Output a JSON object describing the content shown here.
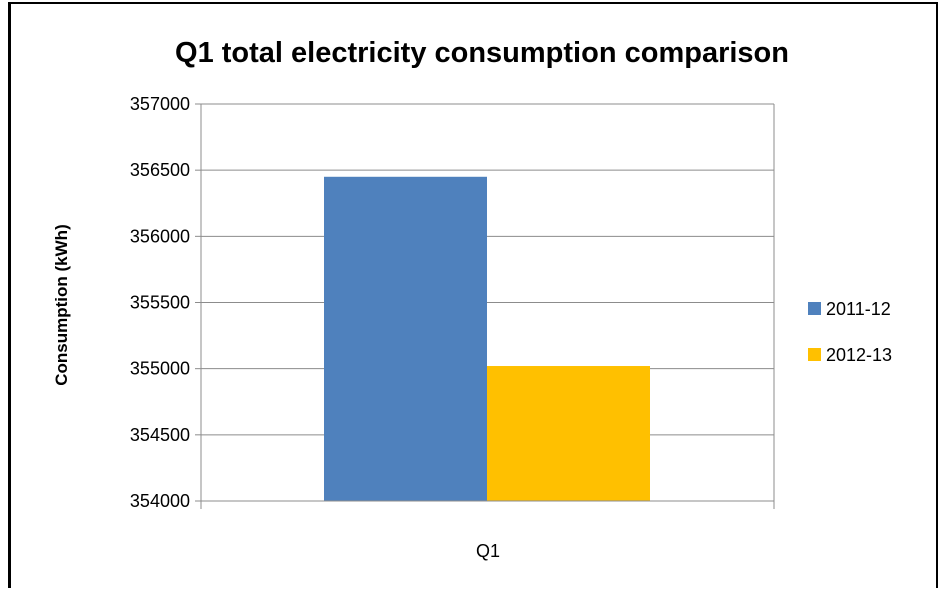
{
  "chart_data": {
    "type": "bar",
    "title": "Q1 total electricity consumption comparison",
    "xlabel": "",
    "ylabel": "Consumption (kWh)",
    "categories": [
      "Q1"
    ],
    "series": [
      {
        "name": "2011-12",
        "values": [
          356450
        ],
        "color": "#4F81BD"
      },
      {
        "name": "2012-13",
        "values": [
          355020
        ],
        "color": "#FFC000"
      }
    ],
    "ylim": [
      354000,
      357000
    ],
    "yticks": [
      "354000",
      "354500",
      "355000",
      "355500",
      "356000",
      "356500",
      "357000"
    ],
    "grid": true,
    "legend_position": "right"
  }
}
